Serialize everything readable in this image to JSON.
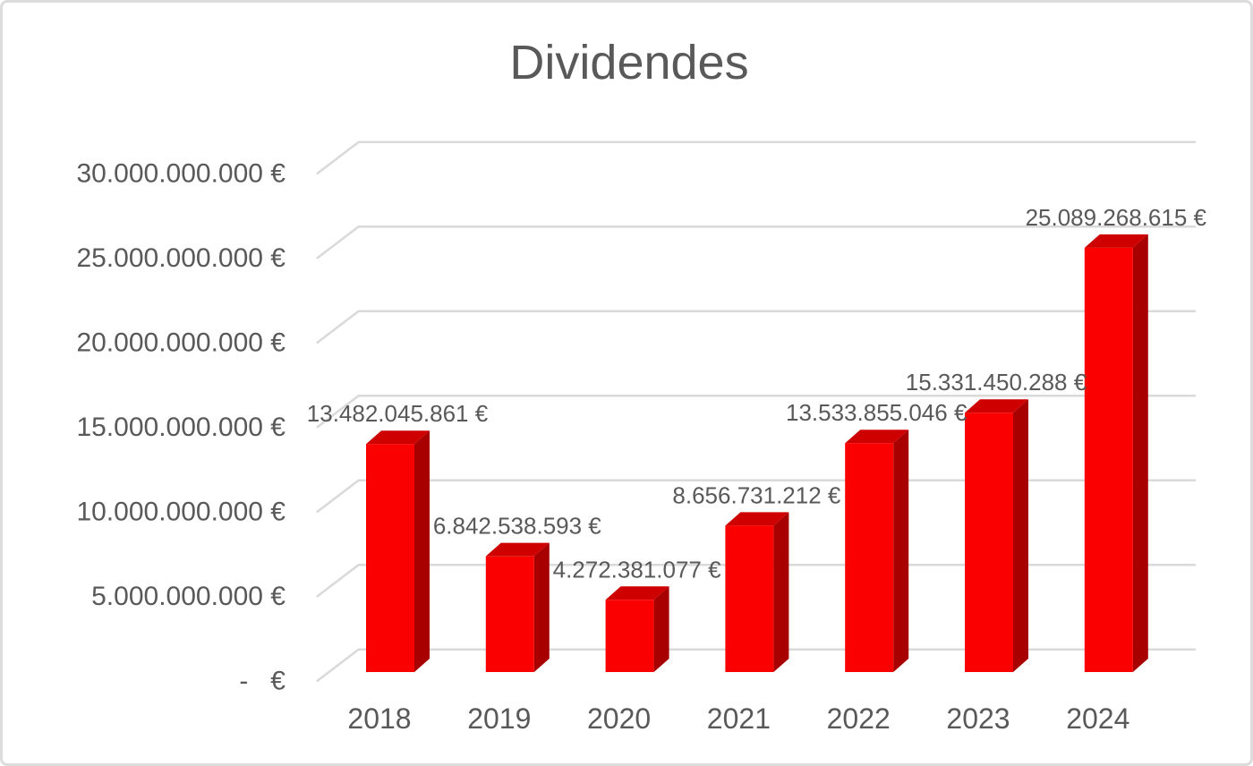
{
  "chart_data": {
    "type": "bar",
    "style": "3d-column",
    "title": "Dividendes",
    "xlabel": "",
    "ylabel": "",
    "grid": true,
    "legend": null,
    "currency": "EUR",
    "categories": [
      "2018",
      "2019",
      "2020",
      "2021",
      "2022",
      "2023",
      "2024"
    ],
    "values": [
      13482045861,
      6842538593,
      4272381077,
      8656731212,
      13533855046,
      15331450288,
      25089268615
    ],
    "data_labels": [
      "13.482.045.861 €",
      "6.842.538.593 €",
      "4.272.381.077 €",
      "8.656.731.212 €",
      "13.533.855.046 €",
      "15.331.450.288 €",
      "25.089.268.615 €"
    ],
    "ylim": [
      0,
      30000000000
    ],
    "y_ticks": [
      {
        "value": 0,
        "label": "-   €"
      },
      {
        "value": 5000000000,
        "label": "5.000.000.000 €"
      },
      {
        "value": 10000000000,
        "label": "10.000.000.000 €"
      },
      {
        "value": 15000000000,
        "label": "15.000.000.000 €"
      },
      {
        "value": 20000000000,
        "label": "20.000.000.000 €"
      },
      {
        "value": 25000000000,
        "label": "25.000.000.000 €"
      },
      {
        "value": 30000000000,
        "label": "30.000.000.000 €"
      }
    ],
    "colors": {
      "bar_front": "#fb0000",
      "bar_top": "#ce0000",
      "bar_side": "#a80000",
      "gridline": "#d9d9d9",
      "axis_text": "#595959",
      "title_text": "#595959",
      "data_label_text": "#595959",
      "background": "#ffffff",
      "frame_border": "#dcdcdc"
    }
  }
}
